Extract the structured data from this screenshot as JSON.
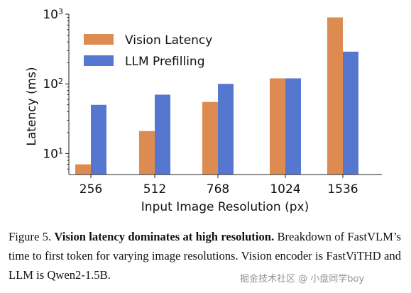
{
  "chart_data": {
    "type": "bar",
    "categories": [
      "256",
      "512",
      "768",
      "1024",
      "1536"
    ],
    "series": [
      {
        "name": "Vision Latency",
        "color": "#DD8B51",
        "values": [
          7,
          21,
          55,
          120,
          900
        ]
      },
      {
        "name": "LLM Prefilling",
        "color": "#5677D0",
        "values": [
          50,
          70,
          100,
          120,
          290
        ]
      }
    ],
    "xlabel": "Input Image Resolution (px)",
    "ylabel": "Latency (ms)",
    "yscale": "log",
    "ylim": [
      5,
      1000
    ],
    "yticks": [
      {
        "value": 10,
        "base": "10",
        "exp": "1"
      },
      {
        "value": 100,
        "base": "10",
        "exp": "2"
      },
      {
        "value": 1000,
        "base": "10",
        "exp": "3"
      }
    ],
    "legend_position": "top-left",
    "grid": false
  },
  "caption": {
    "label": "Figure 5.",
    "bold": "Vision latency dominates at high resolution.",
    "text": "Breakdown of FastVLM’s time to first token for varying image resolutions. Vision encoder is FastViTHD and LLM is Qwen2-1.5B."
  },
  "watermark": "掘金技术社区 @ 小盘同学boy"
}
